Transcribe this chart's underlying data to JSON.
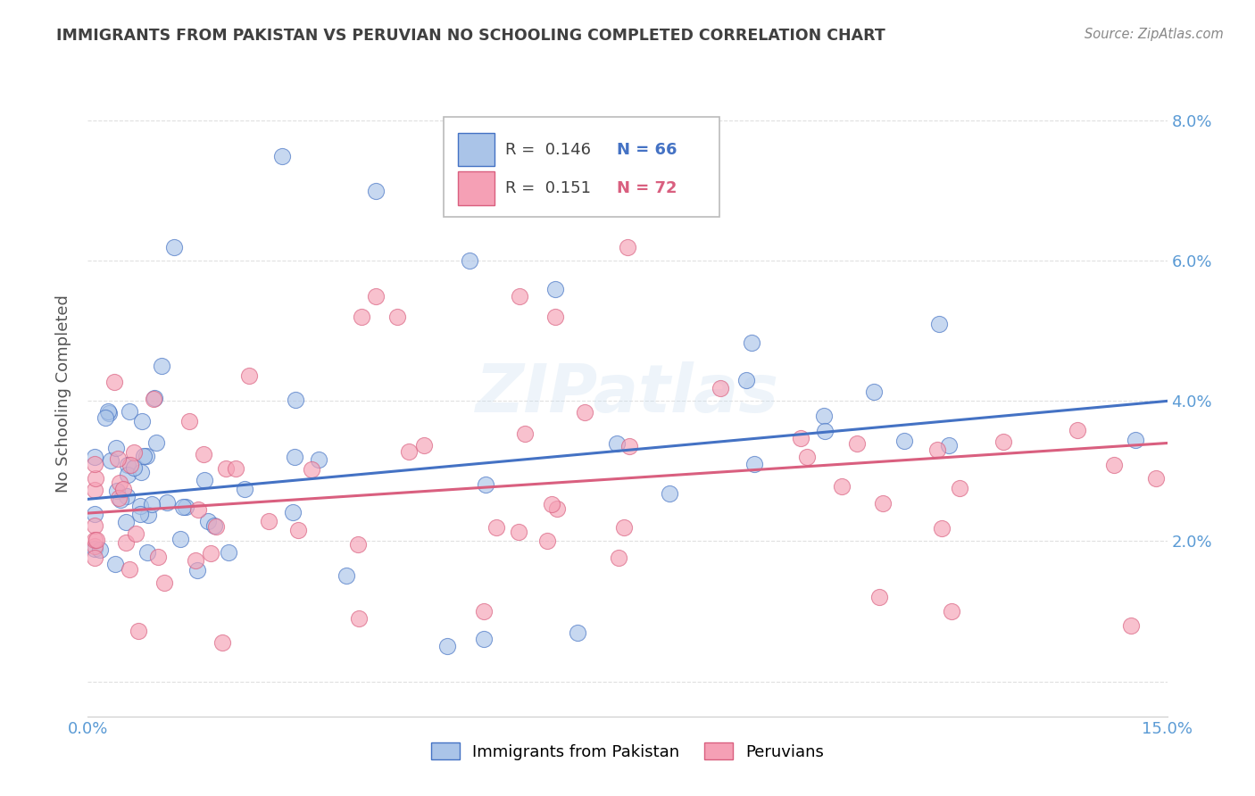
{
  "title": "IMMIGRANTS FROM PAKISTAN VS PERUVIAN NO SCHOOLING COMPLETED CORRELATION CHART",
  "source": "Source: ZipAtlas.com",
  "ylabel": "No Schooling Completed",
  "xmin": 0.0,
  "xmax": 0.15,
  "ymin": -0.005,
  "ymax": 0.087,
  "legend_r1": "R =  0.146",
  "legend_n1": "N = 66",
  "legend_r2": "R =  0.151",
  "legend_n2": "N = 72",
  "color_pakistan": "#aac4e8",
  "color_peru": "#f5a0b5",
  "color_line_pakistan": "#4472c4",
  "color_line_peru": "#d95f7f",
  "color_axis_label": "#5b9bd5",
  "color_title": "#404040",
  "color_source": "#888888",
  "background_color": "#ffffff",
  "grid_color": "#e0e0e0",
  "watermark": "ZIPatlas",
  "pak_line_x0": 0.0,
  "pak_line_y0": 0.026,
  "pak_line_x1": 0.15,
  "pak_line_y1": 0.04,
  "peru_line_x0": 0.0,
  "peru_line_y0": 0.024,
  "peru_line_x1": 0.15,
  "peru_line_y1": 0.034
}
